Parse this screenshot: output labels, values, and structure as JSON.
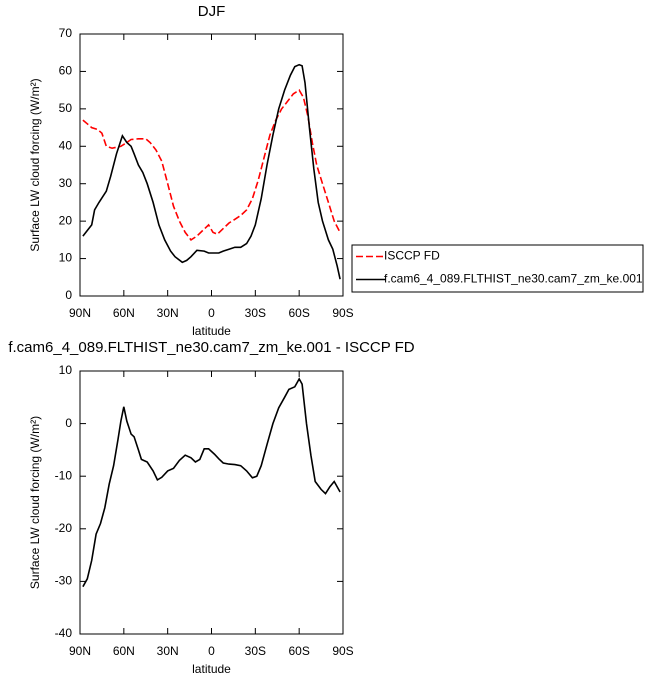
{
  "chart_data": [
    {
      "type": "line",
      "title": "DJF",
      "xlabel": "latitude",
      "ylabel": "Surface LW cloud forcing (W/m²)",
      "xlim": [
        90,
        -90
      ],
      "xticks": [
        {
          "value": 90,
          "label": "90N"
        },
        {
          "value": 60,
          "label": "60N"
        },
        {
          "value": 30,
          "label": "30N"
        },
        0,
        {
          "value": -30,
          "label": "30S"
        },
        {
          "value": -60,
          "label": "60S"
        },
        {
          "value": -90,
          "label": "90S"
        }
      ],
      "ylim": [
        0,
        70
      ],
      "yticks": [
        0,
        10,
        20,
        30,
        40,
        50,
        60,
        70
      ],
      "legend": "right",
      "series": [
        {
          "name": "ISCCP FD",
          "color": "#ff0000",
          "dash": true,
          "x": [
            88,
            85,
            82,
            78,
            75,
            72,
            68,
            62,
            58,
            55,
            50,
            45,
            42,
            38,
            34,
            30,
            26,
            22,
            18,
            14,
            10,
            6,
            2,
            -1,
            -4,
            -8,
            -12,
            -16,
            -20,
            -24,
            -28,
            -32,
            -36,
            -40,
            -44,
            -48,
            -52,
            -56,
            -60,
            -63,
            -66,
            -69,
            -72,
            -76,
            -80,
            -84,
            -88
          ],
          "values": [
            47,
            46,
            45,
            44.5,
            43.5,
            40,
            39.5,
            40,
            41,
            41.8,
            42,
            42,
            41,
            39,
            36,
            30,
            24,
            20,
            17,
            15,
            16,
            17.5,
            19,
            17,
            16.5,
            18,
            19.5,
            20.5,
            21.5,
            23,
            26,
            31,
            37,
            43,
            47,
            50,
            52,
            54,
            55,
            53,
            48,
            41,
            35,
            30,
            25,
            20,
            17
          ]
        },
        {
          "name": "f.cam6_4_089.FLTHIST_ne30.cam7_zm_ke.001",
          "color": "#000000",
          "dash": false,
          "x": [
            88,
            85,
            82,
            80,
            77,
            72,
            69,
            65,
            61,
            58,
            55,
            53,
            50,
            47,
            44,
            40,
            36,
            32,
            28,
            25,
            20,
            17,
            14,
            10,
            5,
            2,
            -2,
            -5,
            -8,
            -12,
            -16,
            -20,
            -24,
            -27,
            -30,
            -34,
            -38,
            -42,
            -46,
            -50,
            -54,
            -57,
            -60,
            -62,
            -64,
            -67,
            -70,
            -73,
            -76,
            -80,
            -83,
            -86,
            -88
          ],
          "values": [
            16,
            17.5,
            19,
            23,
            25,
            28,
            32,
            38,
            42.8,
            41,
            40,
            38,
            35,
            33,
            30,
            25,
            19,
            15,
            12,
            10.5,
            9,
            9.5,
            10.5,
            12.2,
            12,
            11.5,
            11.5,
            11.5,
            12,
            12.5,
            13,
            13,
            14,
            16,
            19,
            26,
            35,
            43,
            50,
            55,
            59,
            61.3,
            61.8,
            61.5,
            57,
            45,
            34,
            25,
            20,
            15,
            12.5,
            8,
            4.5
          ]
        }
      ]
    },
    {
      "type": "line",
      "title": "f.cam6_4_089.FLTHIST_ne30.cam7_zm_ke.001 - ISCCP FD",
      "xlabel": "latitude",
      "ylabel": "Surface LW cloud forcing (W/m²)",
      "xlim": [
        90,
        -90
      ],
      "xticks": [
        {
          "value": 90,
          "label": "90N"
        },
        {
          "value": 60,
          "label": "60N"
        },
        {
          "value": 30,
          "label": "30N"
        },
        0,
        {
          "value": -30,
          "label": "30S"
        },
        {
          "value": -60,
          "label": "60S"
        },
        {
          "value": -90,
          "label": "90S"
        }
      ],
      "ylim": [
        -40,
        10
      ],
      "yticks": [
        -40,
        -30,
        -20,
        -10,
        0,
        10
      ],
      "series": [
        {
          "color": "#000000",
          "dash": false,
          "x": [
            88,
            85,
            82,
            79,
            76,
            73,
            70,
            67,
            64,
            62,
            60,
            58,
            55,
            53,
            50,
            48,
            44,
            40,
            37,
            34,
            30,
            26,
            22,
            18,
            14,
            11,
            8,
            5,
            2,
            -2,
            -5,
            -8,
            -12,
            -16,
            -20,
            -24,
            -28,
            -31,
            -34,
            -38,
            -42,
            -46,
            -50,
            -53,
            -57,
            -60,
            -62,
            -65,
            -68,
            -71,
            -75,
            -78,
            -81,
            -84,
            -88
          ],
          "values": [
            -31,
            -29.5,
            -26,
            -21,
            -19,
            -16,
            -11.5,
            -8,
            -3,
            0.5,
            3.2,
            0.5,
            -2,
            -2.5,
            -5,
            -6.8,
            -7.3,
            -9,
            -10.7,
            -10.2,
            -9,
            -8.5,
            -7,
            -6,
            -6.5,
            -7.3,
            -6.8,
            -4.8,
            -4.8,
            -5.8,
            -6.7,
            -7.5,
            -7.7,
            -7.8,
            -8,
            -9,
            -10.3,
            -10,
            -8,
            -4,
            0,
            3,
            5,
            6.5,
            7,
            8.5,
            7.5,
            0,
            -6,
            -11,
            -12.5,
            -13.3,
            -12,
            -11,
            -13
          ]
        }
      ]
    }
  ]
}
